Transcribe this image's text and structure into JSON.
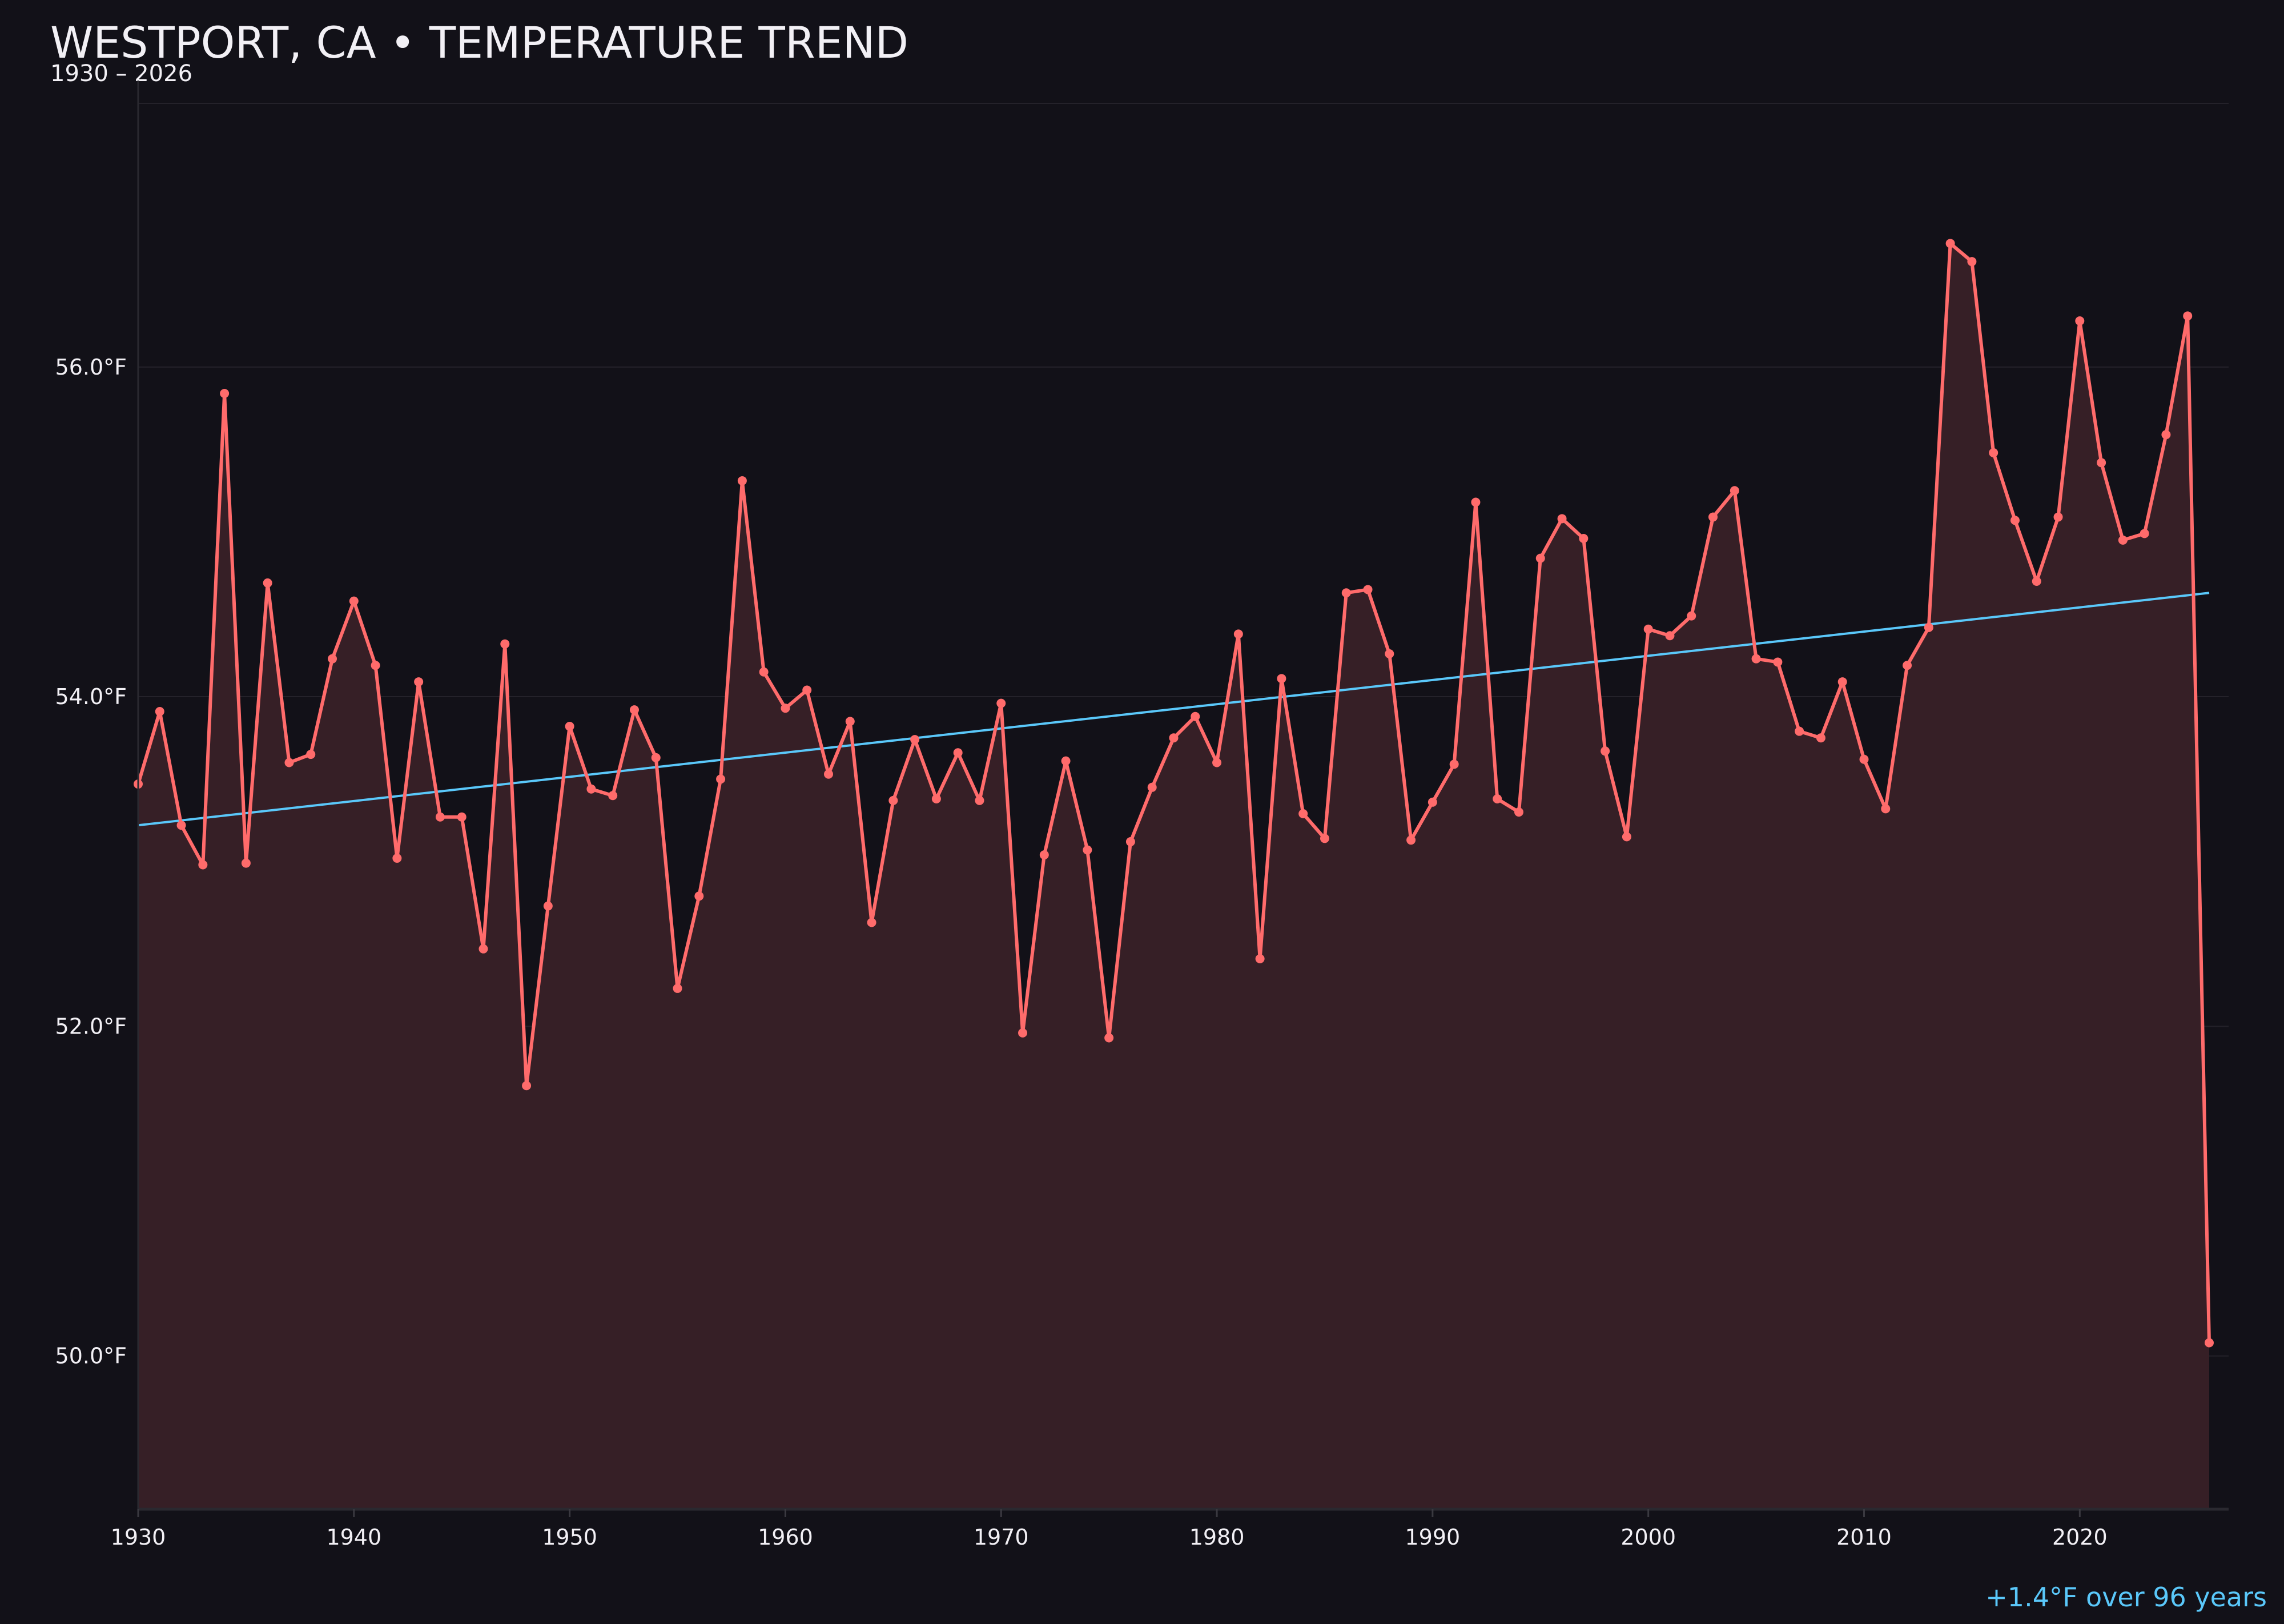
{
  "title": "WESTPORT, CA • TEMPERATURE TREND",
  "subtitle": "1930 – 2026",
  "trend_note": "+1.4°F over 96 years",
  "colors": {
    "background": "#121118",
    "series": "#ff6b6b",
    "fill": "#361f26",
    "trend": "#5ac8fa",
    "grid": "#24222a",
    "text": "#f2f0f5"
  },
  "chart_data": {
    "type": "line",
    "title": "WESTPORT, CA • TEMPERATURE TREND",
    "subtitle": "1930 – 2026",
    "xlabel": "",
    "ylabel": "",
    "xlim": [
      1930,
      2026.9
    ],
    "ylim": [
      49.07,
      57.6
    ],
    "grid": true,
    "area_fill": true,
    "x_ticks": [
      1930,
      1940,
      1950,
      1960,
      1970,
      1980,
      1990,
      2000,
      2010,
      2020
    ],
    "x_tick_labels": [
      "1930",
      "1940",
      "1950",
      "1960",
      "1970",
      "1980",
      "1990",
      "2000",
      "2010",
      "2020"
    ],
    "y_ticks": [
      50,
      52,
      54,
      56
    ],
    "y_tick_labels": [
      "50.0°F",
      "52.0°F",
      "54.0°F",
      "56.0°F"
    ],
    "x": [
      1930,
      1931,
      1932,
      1933,
      1934,
      1935,
      1936,
      1937,
      1938,
      1939,
      1940,
      1941,
      1942,
      1943,
      1944,
      1945,
      1946,
      1947,
      1948,
      1949,
      1950,
      1951,
      1952,
      1953,
      1954,
      1955,
      1956,
      1957,
      1958,
      1959,
      1960,
      1961,
      1962,
      1963,
      1964,
      1965,
      1966,
      1967,
      1968,
      1969,
      1970,
      1971,
      1972,
      1973,
      1974,
      1975,
      1976,
      1977,
      1978,
      1979,
      1980,
      1981,
      1982,
      1983,
      1984,
      1985,
      1986,
      1987,
      1988,
      1989,
      1990,
      1991,
      1992,
      1993,
      1994,
      1995,
      1996,
      1997,
      1998,
      1999,
      2000,
      2001,
      2002,
      2003,
      2004,
      2005,
      2006,
      2007,
      2008,
      2009,
      2010,
      2011,
      2012,
      2013,
      2014,
      2015,
      2016,
      2017,
      2018,
      2019,
      2020,
      2021,
      2022,
      2023,
      2024,
      2025,
      2026
    ],
    "series": [
      {
        "values": [
          53.47,
          53.91,
          53.22,
          52.98,
          55.84,
          52.99,
          54.69,
          53.6,
          53.65,
          54.23,
          54.58,
          54.19,
          53.02,
          54.09,
          53.27,
          53.27,
          52.47,
          54.32,
          51.64,
          52.73,
          53.82,
          53.44,
          53.4,
          53.92,
          53.63,
          52.23,
          52.79,
          53.5,
          55.31,
          54.15,
          53.93,
          54.04,
          53.53,
          53.85,
          52.63,
          53.37,
          53.74,
          53.38,
          53.66,
          53.37,
          53.96,
          51.96,
          53.04,
          53.61,
          53.07,
          51.93,
          53.12,
          53.45,
          53.75,
          53.88,
          53.6,
          54.38,
          52.41,
          54.11,
          53.29,
          53.14,
          54.63,
          54.65,
          54.26,
          53.13,
          53.36,
          53.59,
          55.18,
          53.38,
          53.3,
          54.84,
          55.08,
          54.96,
          53.67,
          53.15,
          54.41,
          54.37,
          54.49,
          55.09,
          55.25,
          54.23,
          54.21,
          53.79,
          53.75,
          54.09,
          53.62,
          53.32,
          54.19,
          54.42,
          56.75,
          56.64,
          55.48,
          55.07,
          54.7,
          55.09,
          56.28,
          55.42,
          54.95,
          54.99,
          55.59,
          56.31,
          50.08
        ]
      }
    ],
    "trend_line": {
      "x": [
        1930,
        2026
      ],
      "y": [
        53.22,
        54.63
      ]
    }
  }
}
